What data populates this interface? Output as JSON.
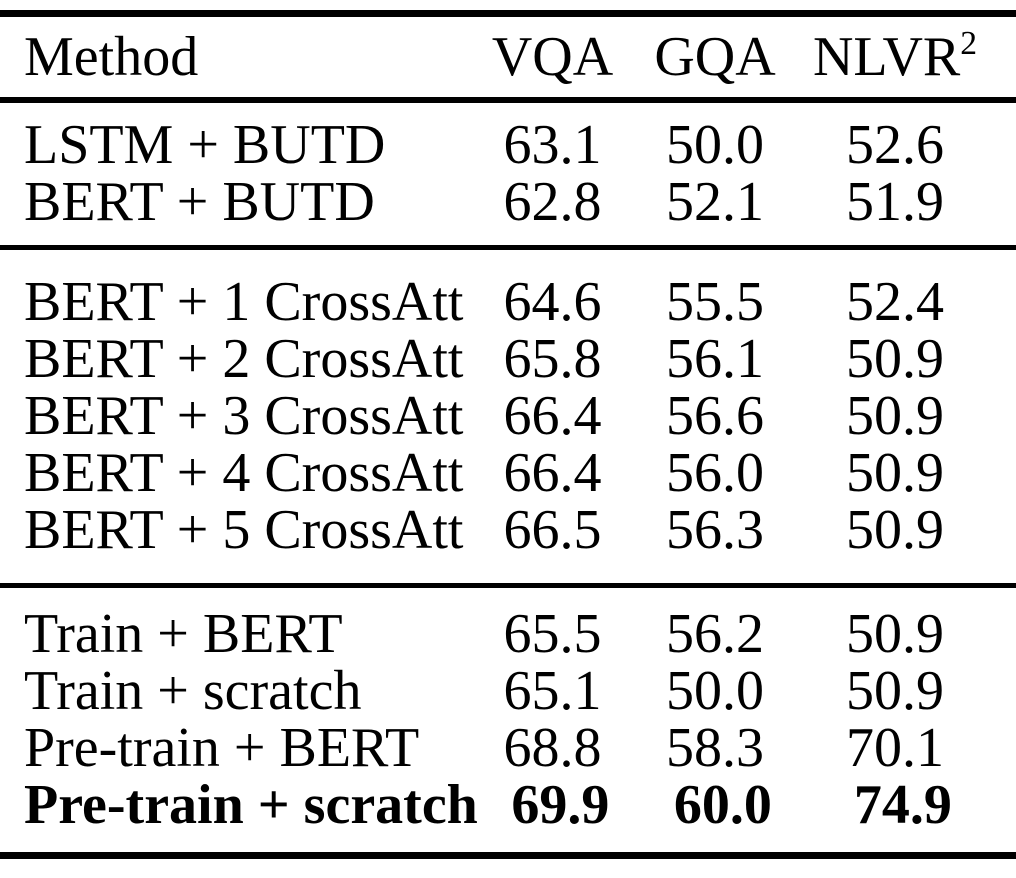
{
  "colors": {
    "text": "#000000",
    "background": "#ffffff",
    "rule": "#000000"
  },
  "table": {
    "header": {
      "method": "Method",
      "vqa": "VQA",
      "gqa": "GQA",
      "nlvr_base": "NLVR",
      "nlvr_sup": "2"
    },
    "groups": [
      {
        "rows": [
          {
            "method": "LSTM + BUTD",
            "vqa": "63.1",
            "gqa": "50.0",
            "nlvr2": "52.6",
            "bold": false
          },
          {
            "method": "BERT + BUTD",
            "vqa": "62.8",
            "gqa": "52.1",
            "nlvr2": "51.9",
            "bold": false
          }
        ]
      },
      {
        "rows": [
          {
            "method": "BERT + 1 CrossAtt",
            "vqa": "64.6",
            "gqa": "55.5",
            "nlvr2": "52.4",
            "bold": false
          },
          {
            "method": "BERT + 2 CrossAtt",
            "vqa": "65.8",
            "gqa": "56.1",
            "nlvr2": "50.9",
            "bold": false
          },
          {
            "method": "BERT + 3 CrossAtt",
            "vqa": "66.4",
            "gqa": "56.6",
            "nlvr2": "50.9",
            "bold": false
          },
          {
            "method": "BERT + 4 CrossAtt",
            "vqa": "66.4",
            "gqa": "56.0",
            "nlvr2": "50.9",
            "bold": false
          },
          {
            "method": "BERT + 5 CrossAtt",
            "vqa": "66.5",
            "gqa": "56.3",
            "nlvr2": "50.9",
            "bold": false
          }
        ]
      },
      {
        "rows": [
          {
            "method": "Train + BERT",
            "vqa": "65.5",
            "gqa": "56.2",
            "nlvr2": "50.9",
            "bold": false
          },
          {
            "method": "Train + scratch",
            "vqa": "65.1",
            "gqa": "50.0",
            "nlvr2": "50.9",
            "bold": false
          },
          {
            "method": "Pre-train + BERT",
            "vqa": "68.8",
            "gqa": "58.3",
            "nlvr2": "70.1",
            "bold": false
          },
          {
            "method": "Pre-train + scratch",
            "vqa": "69.9",
            "gqa": "60.0",
            "nlvr2": "74.9",
            "bold": true
          }
        ]
      }
    ]
  }
}
